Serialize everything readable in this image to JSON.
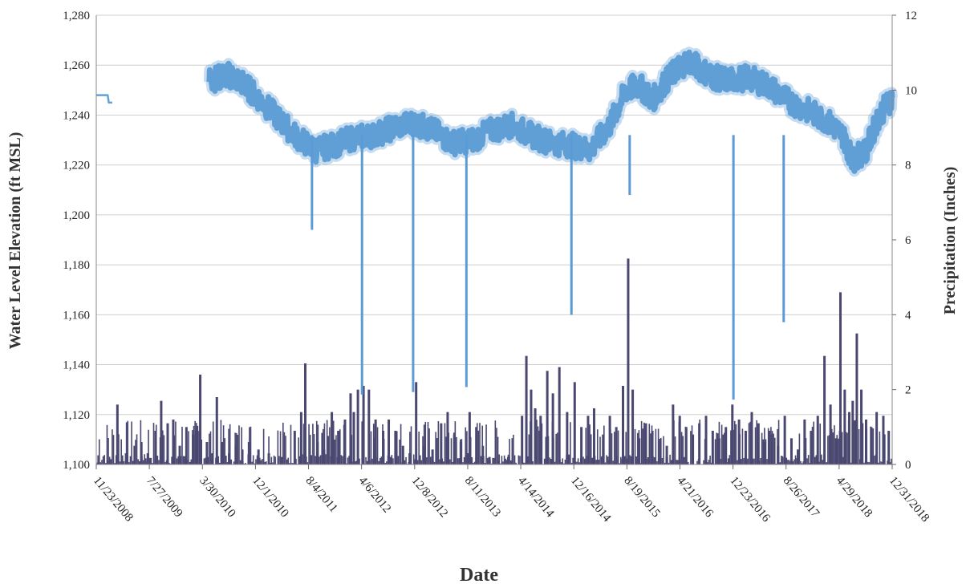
{
  "chart_data": {
    "type": "line",
    "xlabel": "Date",
    "ylabel_left": "Water Level Elevation (ft MSL)",
    "ylabel_right": "Precipitation (Inches)",
    "x_range": [
      "2008-11-23",
      "2018-12-31"
    ],
    "ylim_left": [
      1100,
      1280
    ],
    "ylim_right": [
      0,
      12
    ],
    "grid": true,
    "left_ticks": [
      "1,100",
      "1,120",
      "1,140",
      "1,160",
      "1,180",
      "1,200",
      "1,220",
      "1,240",
      "1,260",
      "1,280"
    ],
    "right_ticks": [
      "0",
      "2",
      "4",
      "6",
      "8",
      "10",
      "12"
    ],
    "x_ticks": [
      {
        "label": "11/23/2008",
        "date": "2008-11-23"
      },
      {
        "label": "7/27/2009",
        "date": "2009-07-27"
      },
      {
        "label": "3/30/2010",
        "date": "2010-03-30"
      },
      {
        "label": "12/1/2010",
        "date": "2010-12-01"
      },
      {
        "label": "8/4/2011",
        "date": "2011-08-04"
      },
      {
        "label": "4/6/2012",
        "date": "2012-04-06"
      },
      {
        "label": "12/8/2012",
        "date": "2012-12-08"
      },
      {
        "label": "8/11/2013",
        "date": "2013-08-11"
      },
      {
        "label": "4/14/2014",
        "date": "2014-04-14"
      },
      {
        "label": "12/16/2014",
        "date": "2014-12-16"
      },
      {
        "label": "8/19/2015",
        "date": "2015-08-19"
      },
      {
        "label": "4/21/2016",
        "date": "2016-04-21"
      },
      {
        "label": "12/23/2016",
        "date": "2016-12-23"
      },
      {
        "label": "8/26/2017",
        "date": "2017-08-26"
      },
      {
        "label": "4/29/2018",
        "date": "2018-04-29"
      },
      {
        "label": "12/31/2018",
        "date": "2018-12-31"
      }
    ],
    "colors": {
      "water_level": "#5b9bd5",
      "precipitation": "#4a4870"
    },
    "water_level": {
      "name": "",
      "axis": "left",
      "segments": [
        [
          [
            "2008-11-23",
            1248
          ],
          [
            "2008-12-25",
            1248
          ],
          [
            "2009-01-15",
            1248
          ],
          [
            "2009-01-20",
            1245
          ],
          [
            "2009-02-05",
            1245
          ]
        ],
        [
          [
            "2010-05-01",
            1254
          ],
          [
            "2010-06-15",
            1255
          ],
          [
            "2010-08-01",
            1256
          ],
          [
            "2010-10-01",
            1253
          ],
          [
            "2010-12-01",
            1248
          ],
          [
            "2011-03-01",
            1240
          ],
          [
            "2011-06-01",
            1232
          ],
          [
            "2011-09-01",
            1226
          ],
          [
            "2011-12-01",
            1228
          ],
          [
            "2012-03-01",
            1231
          ],
          [
            "2012-06-01",
            1232
          ],
          [
            "2012-09-01",
            1235
          ],
          [
            "2012-12-01",
            1237
          ],
          [
            "2013-03-01",
            1234
          ],
          [
            "2013-06-01",
            1229
          ],
          [
            "2013-09-01",
            1230
          ],
          [
            "2013-12-01",
            1234
          ],
          [
            "2014-03-01",
            1236
          ],
          [
            "2014-06-01",
            1232
          ],
          [
            "2014-09-01",
            1229
          ],
          [
            "2014-12-01",
            1228
          ],
          [
            "2015-03-01",
            1226
          ],
          [
            "2015-06-01",
            1236
          ],
          [
            "2015-08-15",
            1250
          ],
          [
            "2015-10-15",
            1252
          ],
          [
            "2015-12-15",
            1246
          ],
          [
            "2016-02-01",
            1252
          ],
          [
            "2016-04-01",
            1258
          ],
          [
            "2016-06-01",
            1262
          ],
          [
            "2016-08-01",
            1258
          ],
          [
            "2016-10-01",
            1255
          ],
          [
            "2016-12-01",
            1254
          ],
          [
            "2017-03-01",
            1255
          ],
          [
            "2017-06-01",
            1252
          ],
          [
            "2017-09-01",
            1246
          ],
          [
            "2017-12-01",
            1242
          ],
          [
            "2018-03-01",
            1238
          ],
          [
            "2018-05-15",
            1232
          ],
          [
            "2018-07-01",
            1222
          ],
          [
            "2018-09-01",
            1226
          ],
          [
            "2018-11-01",
            1240
          ],
          [
            "2018-12-31",
            1247
          ]
        ]
      ],
      "drops": [
        [
          "2011-08-20",
          1194
        ],
        [
          "2012-04-08",
          1128
        ],
        [
          "2012-12-01",
          1129
        ],
        [
          "2013-08-05",
          1131
        ],
        [
          "2014-12-05",
          1160
        ],
        [
          "2015-09-01",
          1208
        ],
        [
          "2016-12-25",
          1126
        ],
        [
          "2017-08-15",
          1157
        ]
      ]
    },
    "precipitation": {
      "name": "",
      "axis": "right",
      "values": [
        [
          "2008-12-01",
          0.05
        ],
        [
          "2009-01-15",
          0.1
        ],
        [
          "2009-03-01",
          1.6
        ],
        [
          "2009-04-10",
          0.3
        ],
        [
          "2009-05-20",
          0.5
        ],
        [
          "2009-06-20",
          0.6
        ],
        [
          "2009-07-20",
          0.3
        ],
        [
          "2009-08-25",
          0.9
        ],
        [
          "2009-09-20",
          1.7
        ],
        [
          "2009-10-20",
          1.1
        ],
        [
          "2009-11-15",
          1.2
        ],
        [
          "2009-12-15",
          0.5
        ],
        [
          "2010-01-15",
          1.0
        ],
        [
          "2010-02-15",
          0.8
        ],
        [
          "2010-03-01",
          0.9
        ],
        [
          "2010-03-20",
          2.4
        ],
        [
          "2010-04-20",
          0.6
        ],
        [
          "2010-05-15",
          0.3
        ],
        [
          "2010-06-05",
          1.8
        ],
        [
          "2010-07-01",
          0.6
        ],
        [
          "2010-08-01",
          0.3
        ],
        [
          "2010-09-01",
          0.5
        ],
        [
          "2010-10-01",
          0.4
        ],
        [
          "2010-11-01",
          0.6
        ],
        [
          "2010-12-15",
          0.4
        ],
        [
          "2011-02-01",
          0.3
        ],
        [
          "2011-04-01",
          0.2
        ],
        [
          "2011-06-01",
          0.9
        ],
        [
          "2011-07-01",
          1.4
        ],
        [
          "2011-07-20",
          2.7
        ],
        [
          "2011-09-15",
          0.6
        ],
        [
          "2011-10-15",
          0.4
        ],
        [
          "2011-11-20",
          1.4
        ],
        [
          "2011-12-20",
          0.9
        ],
        [
          "2012-01-20",
          1.2
        ],
        [
          "2012-02-15",
          1.9
        ],
        [
          "2012-03-01",
          1.4
        ],
        [
          "2012-03-20",
          2.0
        ],
        [
          "2012-04-15",
          2.1
        ],
        [
          "2012-05-10",
          2.0
        ],
        [
          "2012-06-10",
          1.2
        ],
        [
          "2012-07-15",
          0.9
        ],
        [
          "2012-08-10",
          1.2
        ],
        [
          "2012-09-10",
          0.9
        ],
        [
          "2012-10-15",
          0.5
        ],
        [
          "2012-11-15",
          0.3
        ],
        [
          "2012-12-15",
          2.2
        ],
        [
          "2013-01-20",
          0.5
        ],
        [
          "2013-03-01",
          0.4
        ],
        [
          "2013-04-10",
          1.1
        ],
        [
          "2013-05-10",
          1.4
        ],
        [
          "2013-06-10",
          0.8
        ],
        [
          "2013-07-10",
          0.6
        ],
        [
          "2013-08-10",
          0.3
        ],
        [
          "2013-08-20",
          1.4
        ],
        [
          "2013-09-20",
          1.0
        ],
        [
          "2013-10-20",
          0.5
        ],
        [
          "2013-11-20",
          0.2
        ],
        [
          "2014-01-01",
          0.1
        ],
        [
          "2014-02-15",
          0.2
        ],
        [
          "2014-04-20",
          1.3
        ],
        [
          "2014-05-10",
          2.9
        ],
        [
          "2014-06-01",
          2.0
        ],
        [
          "2014-06-20",
          1.5
        ],
        [
          "2014-07-15",
          1.3
        ],
        [
          "2014-08-15",
          2.5
        ],
        [
          "2014-09-10",
          1.9
        ],
        [
          "2014-10-10",
          2.6
        ],
        [
          "2014-11-15",
          1.4
        ],
        [
          "2014-12-20",
          2.2
        ],
        [
          "2015-01-20",
          1.0
        ],
        [
          "2015-02-20",
          1.3
        ],
        [
          "2015-03-20",
          1.5
        ],
        [
          "2015-05-01",
          0.8
        ],
        [
          "2015-06-01",
          1.3
        ],
        [
          "2015-07-01",
          1.0
        ],
        [
          "2015-08-01",
          2.1
        ],
        [
          "2015-08-25",
          5.5
        ],
        [
          "2015-09-15",
          2.0
        ],
        [
          "2015-10-15",
          0.7
        ],
        [
          "2015-11-15",
          1.1
        ],
        [
          "2015-12-15",
          0.9
        ],
        [
          "2016-01-20",
          0.6
        ],
        [
          "2016-02-20",
          0.5
        ],
        [
          "2016-03-20",
          1.6
        ],
        [
          "2016-04-20",
          1.3
        ],
        [
          "2016-05-20",
          1.0
        ],
        [
          "2016-06-20",
          0.8
        ],
        [
          "2016-07-20",
          1.1
        ],
        [
          "2016-08-20",
          1.3
        ],
        [
          "2016-09-20",
          0.9
        ],
        [
          "2016-10-20",
          0.7
        ],
        [
          "2016-11-20",
          1.0
        ],
        [
          "2016-12-20",
          1.6
        ],
        [
          "2017-01-20",
          1.2
        ],
        [
          "2017-02-20",
          0.9
        ],
        [
          "2017-03-20",
          1.4
        ],
        [
          "2017-04-20",
          1.1
        ],
        [
          "2017-05-20",
          0.6
        ],
        [
          "2017-06-20",
          0.8
        ],
        [
          "2017-07-20",
          0.5
        ],
        [
          "2017-08-20",
          1.3
        ],
        [
          "2017-09-20",
          0.7
        ],
        [
          "2017-10-20",
          0.4
        ],
        [
          "2017-11-20",
          1.2
        ],
        [
          "2017-12-20",
          0.9
        ],
        [
          "2018-01-20",
          1.3
        ],
        [
          "2018-02-20",
          2.9
        ],
        [
          "2018-03-20",
          1.6
        ],
        [
          "2018-04-15",
          0.7
        ],
        [
          "2018-05-05",
          4.6
        ],
        [
          "2018-05-25",
          2.0
        ],
        [
          "2018-06-15",
          1.4
        ],
        [
          "2018-07-01",
          1.7
        ],
        [
          "2018-07-20",
          3.5
        ],
        [
          "2018-08-10",
          2.0
        ],
        [
          "2018-09-01",
          1.2
        ],
        [
          "2018-09-25",
          1.0
        ],
        [
          "2018-10-20",
          1.4
        ],
        [
          "2018-11-20",
          1.3
        ],
        [
          "2018-12-15",
          0.9
        ]
      ]
    }
  }
}
